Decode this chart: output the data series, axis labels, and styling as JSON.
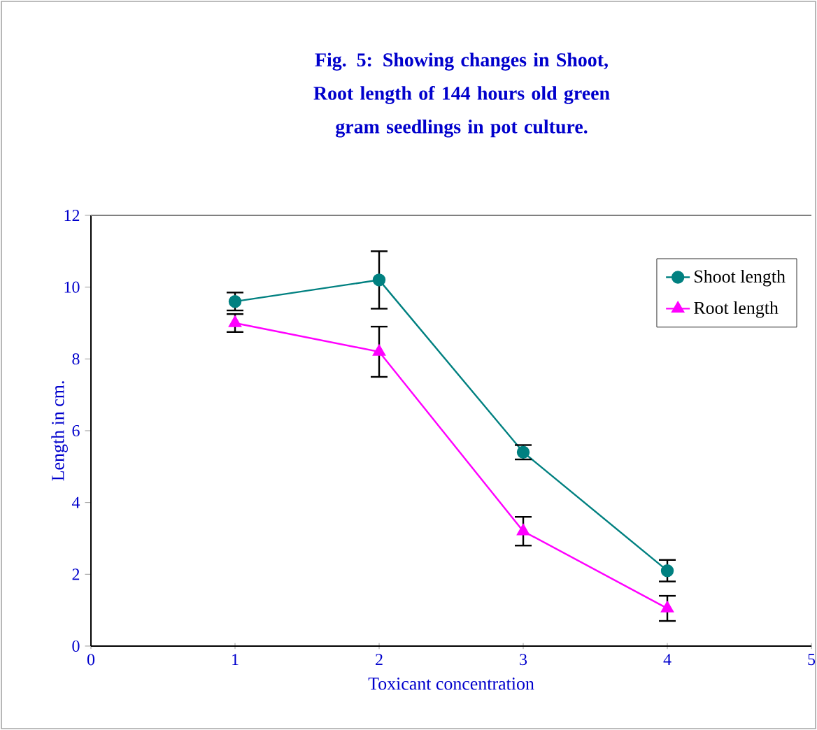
{
  "chart_data": {
    "type": "line",
    "title": "Fig. 5: Showing changes in Shoot, Root length of 144 hours old green gram seedlings  in pot culture.",
    "xlabel": "Toxicant concentration",
    "ylabel": "Length in cm.",
    "x": [
      1,
      2,
      3,
      4
    ],
    "xlim": [
      0,
      5
    ],
    "xticks": [
      0,
      1,
      2,
      3,
      4,
      5
    ],
    "ylim": [
      0,
      12
    ],
    "yticks": [
      0,
      2,
      4,
      6,
      8,
      10,
      12
    ],
    "legend": "top right",
    "grid": false,
    "series": [
      {
        "name": "Shoot length",
        "color": "#008080",
        "marker": "circle",
        "values": [
          9.6,
          10.2,
          5.4,
          2.1
        ],
        "errors": [
          0.25,
          0.8,
          0.2,
          0.3
        ]
      },
      {
        "name": "Root length",
        "color": "#ff00ff",
        "marker": "triangle",
        "values": [
          9.0,
          8.2,
          3.2,
          1.05
        ],
        "errors": [
          0.25,
          0.7,
          0.4,
          0.35
        ]
      }
    ]
  }
}
